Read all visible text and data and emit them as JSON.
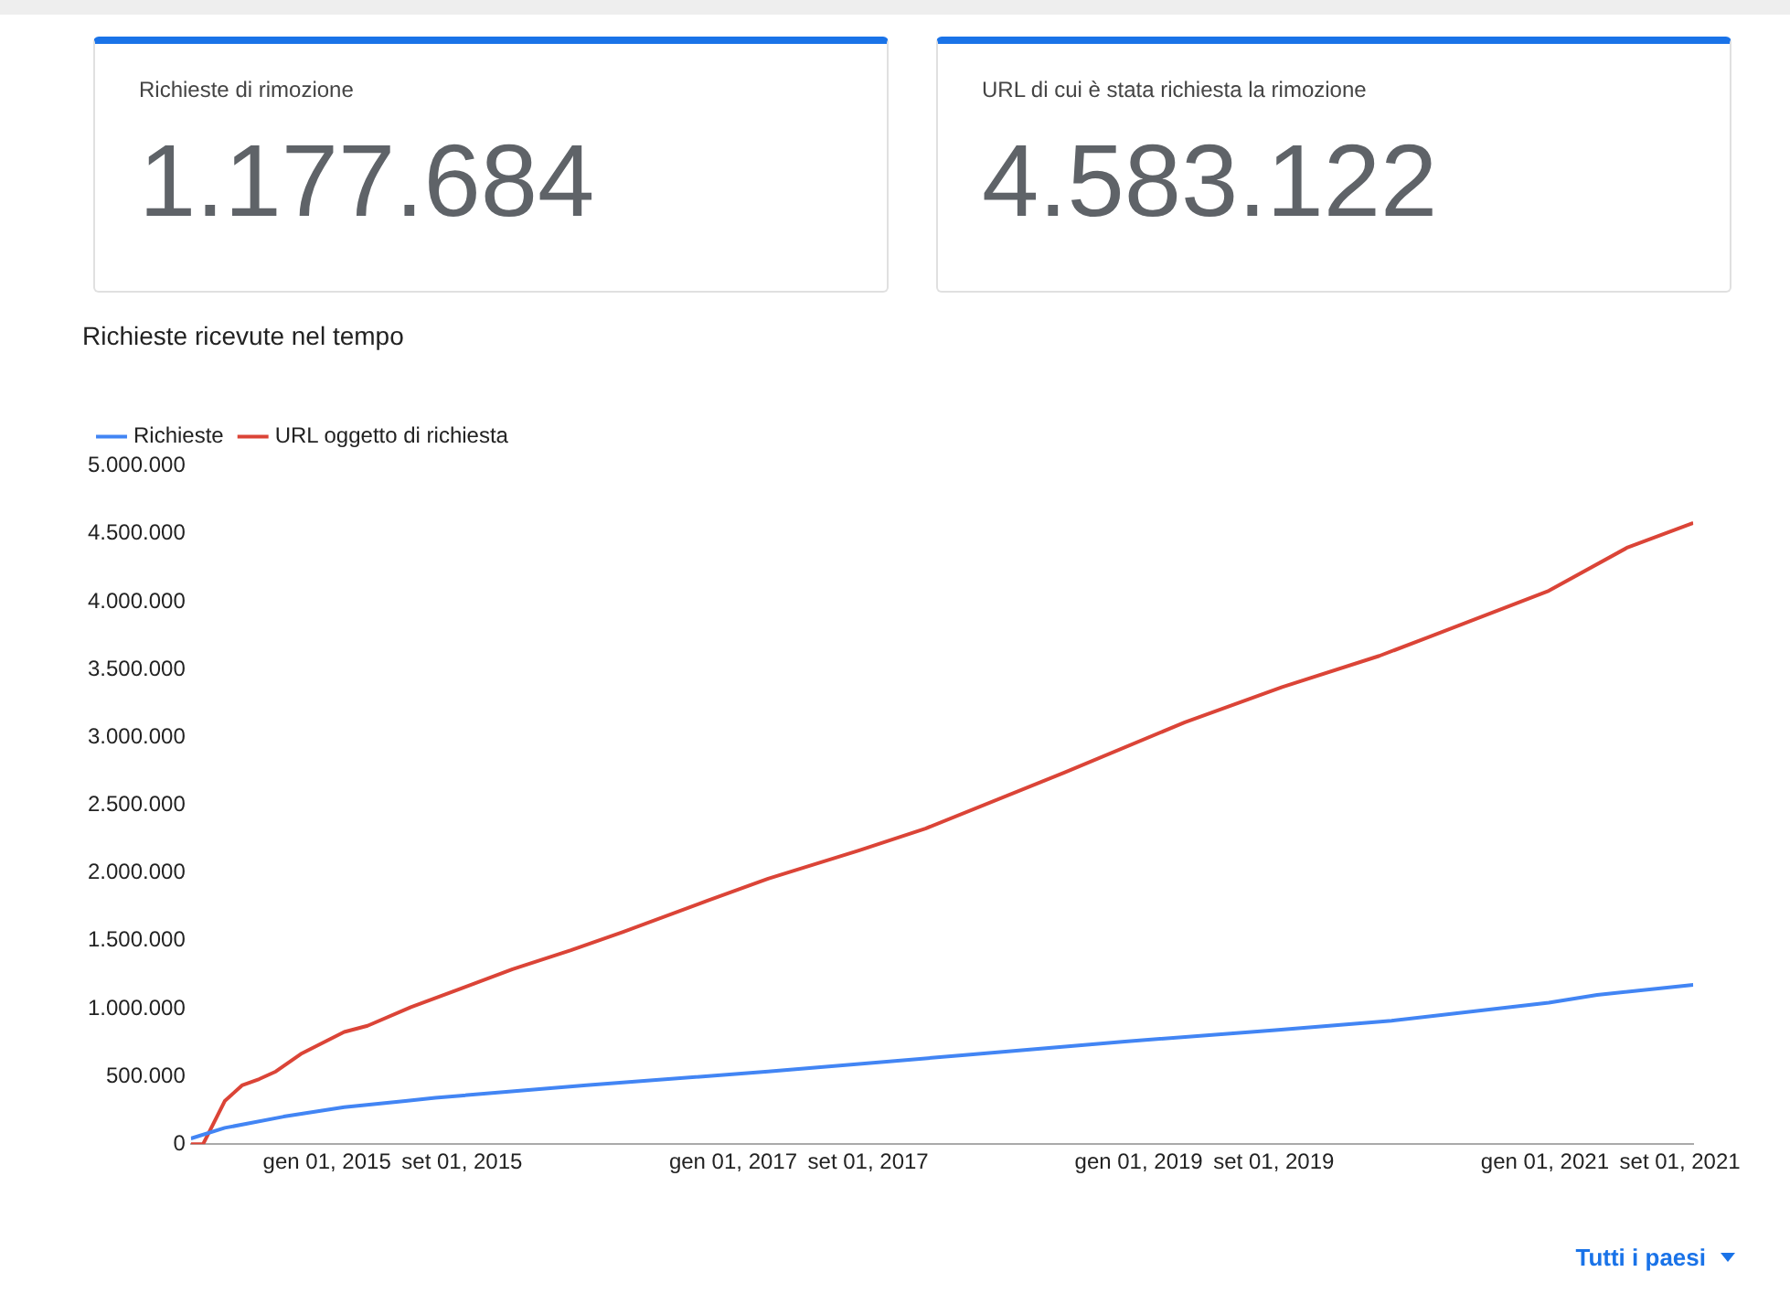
{
  "chart_data": [
    {
      "type": "other",
      "title": "Richieste di rimozione",
      "annotations": [
        "1.177.684"
      ]
    },
    {
      "type": "other",
      "title": "URL di cui è stata richiesta la rimozione",
      "annotations": [
        "4.583.122"
      ]
    },
    {
      "type": "line",
      "title": "Richieste ricevute nel tempo",
      "legend": "top left",
      "grid": false,
      "marker": "none",
      "line_style": "solid",
      "xlim": [
        "2014-05-01",
        "2021-09-25"
      ],
      "xticks": [
        {
          "value": "2015-01-01",
          "label": "gen 01, 2015"
        },
        {
          "value": "2015-09-01",
          "label": "set 01, 2015"
        },
        {
          "value": "2017-01-01",
          "label": "gen 01, 2017"
        },
        {
          "value": "2017-09-01",
          "label": "set 01, 2017"
        },
        {
          "value": "2019-01-01",
          "label": "gen 01, 2019"
        },
        {
          "value": "2019-09-01",
          "label": "set 01, 2019"
        },
        {
          "value": "2021-01-01",
          "label": "gen 01, 2021"
        },
        {
          "value": "2021-09-01",
          "label": "set 01, 2021"
        }
      ],
      "ylim": [
        0,
        5000000
      ],
      "yticks": [
        0,
        {
          "value": 500000,
          "label": "500.000"
        },
        {
          "value": 1000000,
          "label": "1.000.000"
        },
        {
          "value": 1500000,
          "label": "1.500.000"
        },
        {
          "value": 2000000,
          "label": "2.000.000"
        },
        {
          "value": 2500000,
          "label": "2.500.000"
        },
        {
          "value": 3000000,
          "label": "3.000.000"
        },
        {
          "value": 3500000,
          "label": "3.500.000"
        },
        {
          "value": 4000000,
          "label": "4.000.000"
        },
        {
          "value": 4500000,
          "label": "4.500.000"
        },
        {
          "value": 5000000,
          "label": "5.000.000"
        }
      ],
      "annotations": [
        "Tutti i paesi"
      ],
      "series": [
        {
          "name": "Richieste",
          "color": "#4285f4",
          "x": [
            "2014-05-01",
            "2014-07-01",
            "2014-10-15",
            "2015-02-01",
            "2015-05-22",
            "2015-07-15",
            "2016-04-12",
            "2017-03-05",
            "2018-02-17",
            "2018-12-07",
            "2019-09-04",
            "2020-03-31",
            "2021-01-08",
            "2021-04-05",
            "2021-09-25"
          ],
          "values": [
            42000,
            120000,
            203000,
            273000,
            319000,
            342000,
            434000,
            536000,
            655000,
            757000,
            840000,
            910000,
            1043000,
            1100000,
            1175000
          ]
        },
        {
          "name": "URL oggetto di richiesta",
          "color": "#db4437",
          "x": [
            "2014-05-01",
            "2014-05-23",
            "2014-07-01",
            "2014-08-01",
            "2014-09-01",
            "2014-10-01",
            "2014-11-15",
            "2015-02-01",
            "2015-03-15",
            "2015-06-01",
            "2015-09-01",
            "2015-12-01",
            "2016-03-15",
            "2016-06-17",
            "2016-11-16",
            "2017-03-05",
            "2017-08-15",
            "2017-12-13",
            "2018-08-20",
            "2019-03-25",
            "2019-09-16",
            "2020-03-09",
            "2020-06-04",
            "2021-01-08",
            "2021-05-30",
            "2021-09-25"
          ],
          "values": [
            0,
            0,
            318000,
            433000,
            480000,
            536000,
            665000,
            827000,
            873000,
            1010000,
            1150000,
            1290000,
            1430000,
            1565000,
            1796000,
            1957000,
            2165000,
            2327000,
            2740000,
            3110000,
            3370000,
            3600000,
            3735000,
            4080000,
            4400000,
            4580000
          ]
        }
      ]
    }
  ]
}
